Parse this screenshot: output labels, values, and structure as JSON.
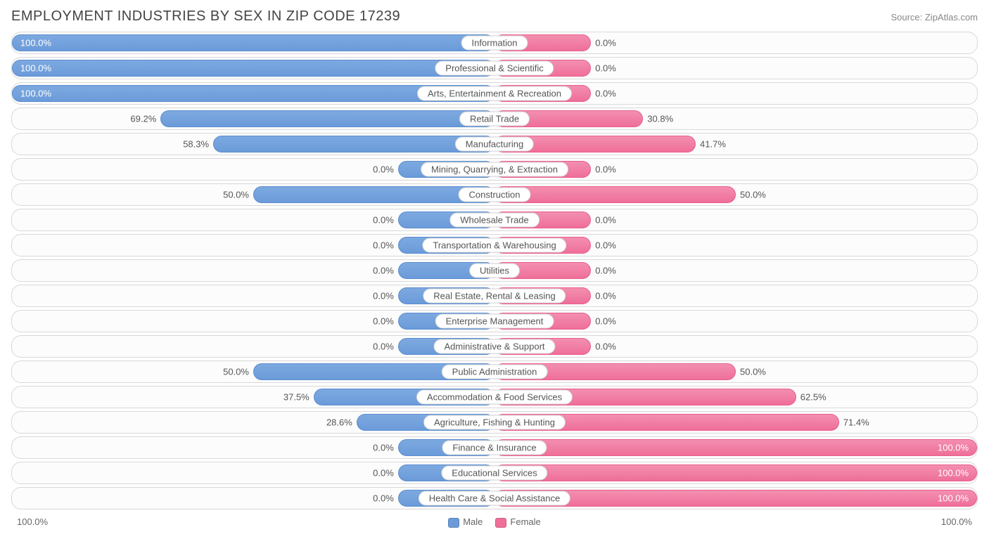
{
  "chart": {
    "title": "EMPLOYMENT INDUSTRIES BY SEX IN ZIP CODE 17239",
    "source": "Source: ZipAtlas.com",
    "type": "diverging-bar",
    "background_color": "#ffffff",
    "row_border_color": "#d8d8d8",
    "row_bg_color": "#fcfcfc",
    "male_bar_color": "#6b9bd9",
    "male_bar_gradient_top": "#7da9e0",
    "male_bar_border": "#5a8ccf",
    "female_bar_color": "#ef6f99",
    "female_bar_gradient_top": "#f38fb0",
    "female_bar_border": "#e95d8b",
    "label_fontsize": 13,
    "title_fontsize": 20,
    "min_bar_pct": 20,
    "axis_left_label": "100.0%",
    "axis_right_label": "100.0%",
    "legend": {
      "male_label": "Male",
      "female_label": "Female"
    },
    "rows": [
      {
        "category": "Information",
        "male": 100.0,
        "female": 0.0
      },
      {
        "category": "Professional & Scientific",
        "male": 100.0,
        "female": 0.0
      },
      {
        "category": "Arts, Entertainment & Recreation",
        "male": 100.0,
        "female": 0.0
      },
      {
        "category": "Retail Trade",
        "male": 69.2,
        "female": 30.8
      },
      {
        "category": "Manufacturing",
        "male": 58.3,
        "female": 41.7
      },
      {
        "category": "Mining, Quarrying, & Extraction",
        "male": 0.0,
        "female": 0.0
      },
      {
        "category": "Construction",
        "male": 50.0,
        "female": 50.0
      },
      {
        "category": "Wholesale Trade",
        "male": 0.0,
        "female": 0.0
      },
      {
        "category": "Transportation & Warehousing",
        "male": 0.0,
        "female": 0.0
      },
      {
        "category": "Utilities",
        "male": 0.0,
        "female": 0.0
      },
      {
        "category": "Real Estate, Rental & Leasing",
        "male": 0.0,
        "female": 0.0
      },
      {
        "category": "Enterprise Management",
        "male": 0.0,
        "female": 0.0
      },
      {
        "category": "Administrative & Support",
        "male": 0.0,
        "female": 0.0
      },
      {
        "category": "Public Administration",
        "male": 50.0,
        "female": 50.0
      },
      {
        "category": "Accommodation & Food Services",
        "male": 37.5,
        "female": 62.5
      },
      {
        "category": "Agriculture, Fishing & Hunting",
        "male": 28.6,
        "female": 71.4
      },
      {
        "category": "Finance & Insurance",
        "male": 0.0,
        "female": 100.0
      },
      {
        "category": "Educational Services",
        "male": 0.0,
        "female": 100.0
      },
      {
        "category": "Health Care & Social Assistance",
        "male": 0.0,
        "female": 100.0
      }
    ]
  }
}
